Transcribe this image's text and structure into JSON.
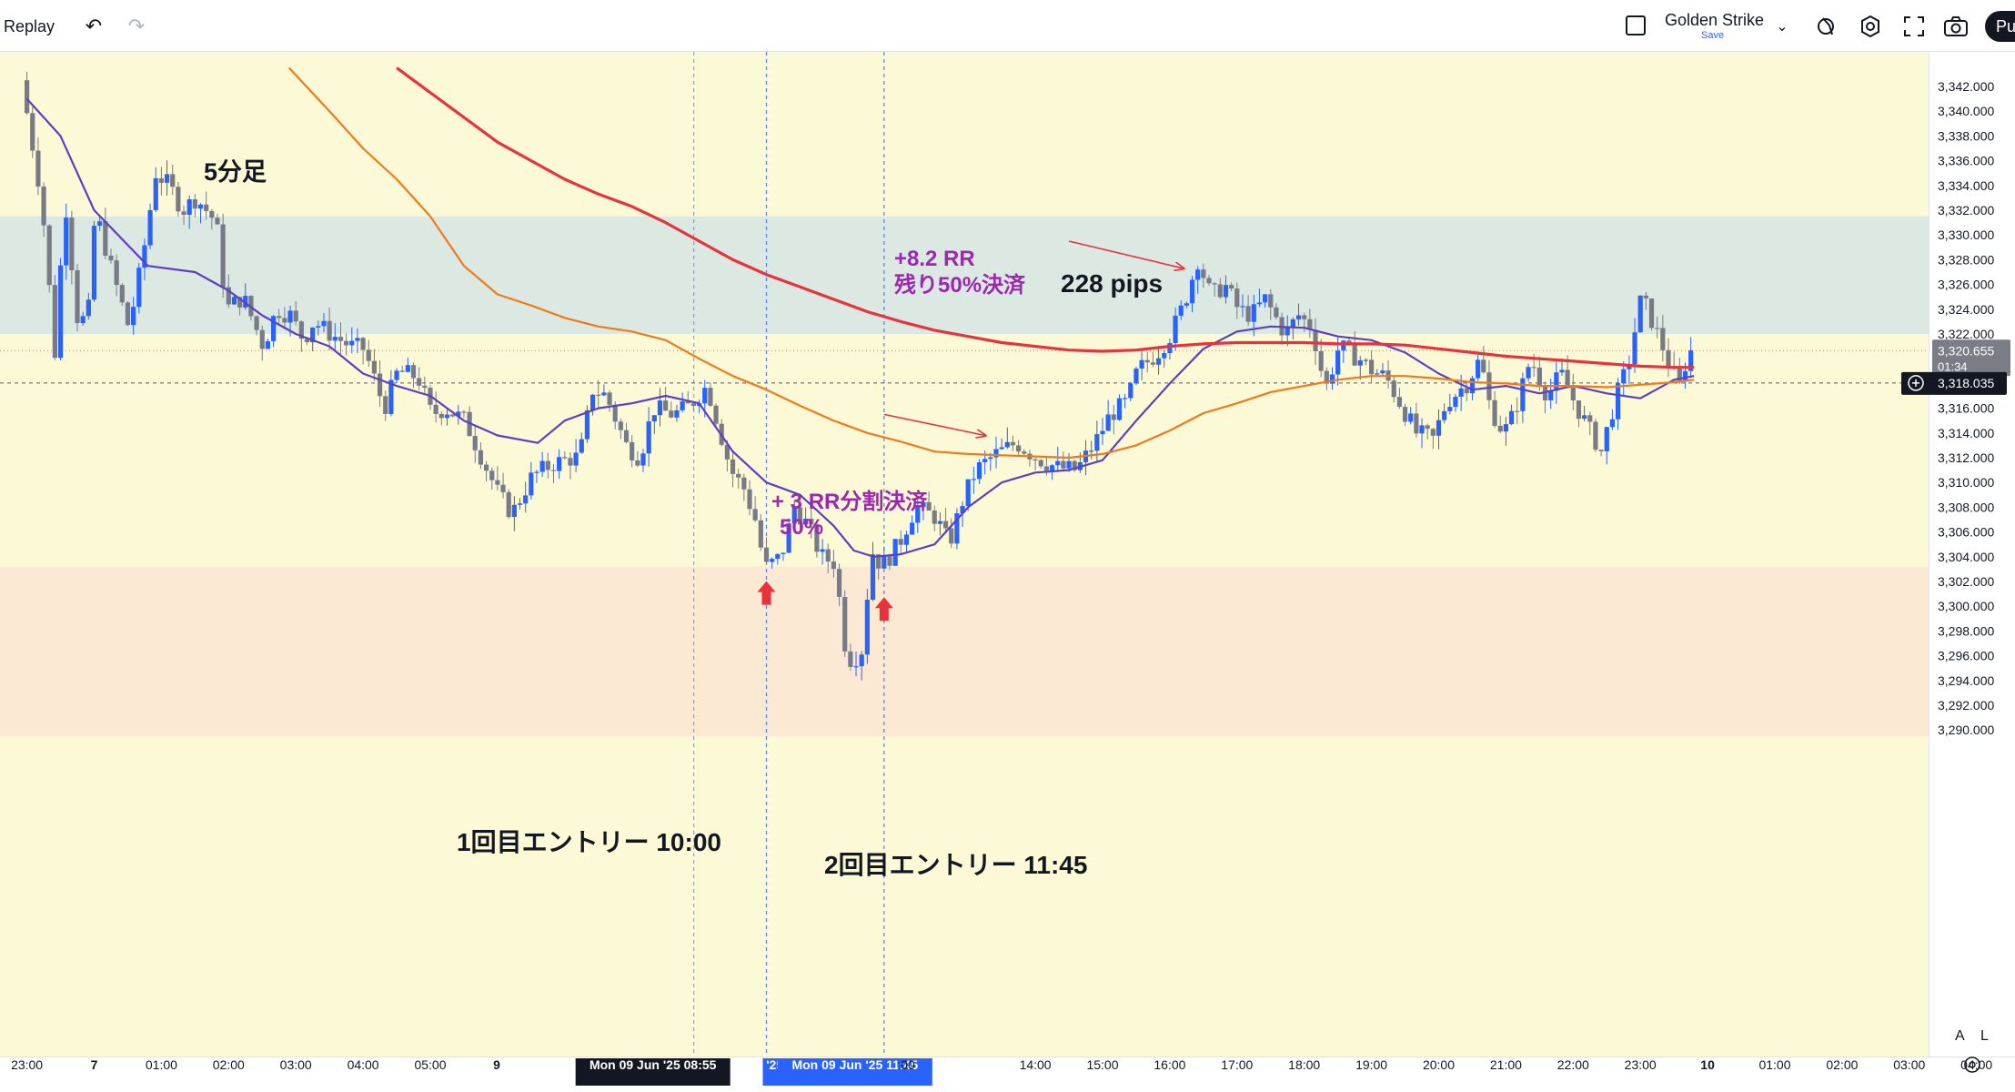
{
  "toolbar": {
    "replay_label": "Replay",
    "layout_name": "Golden Strike",
    "layout_status": "Save",
    "publish_label": "Pu",
    "icons": [
      "undo-icon",
      "redo-icon",
      "checkbox-icon",
      "chevron-down-icon",
      "alert-icon",
      "settings-icon",
      "fullscreen-icon",
      "camera-icon"
    ]
  },
  "chart_data": {
    "type": "candlestick",
    "symbol_timeframe_label": "5分足",
    "price_axis": {
      "min": 3288.0,
      "max": 3343.5,
      "ticks": [
        "3,342.000",
        "3,340.000",
        "3,338.000",
        "3,336.000",
        "3,334.000",
        "3,332.000",
        "3,330.000",
        "3,328.000",
        "3,326.000",
        "3,324.000",
        "3,322.000",
        "3,320.000",
        "3,318.000",
        "3,316.000",
        "3,314.000",
        "3,312.000",
        "3,310.000",
        "3,308.000",
        "3,306.000",
        "3,304.000",
        "3,302.000",
        "3,300.000",
        "3,298.000",
        "3,296.000",
        "3,294.000",
        "3,292.000",
        "3,290.000"
      ],
      "tick_values": [
        3342,
        3340,
        3338,
        3336,
        3334,
        3332,
        3330,
        3328,
        3326,
        3324,
        3322,
        3320,
        3318,
        3316,
        3314,
        3312,
        3310,
        3308,
        3306,
        3304,
        3302,
        3300,
        3298,
        3296,
        3294,
        3292,
        3290
      ],
      "last_price_label": "3,320.655",
      "last_price_value": 3320.655,
      "countdown": "01:34",
      "crosshair_price_label": "3,318.035",
      "crosshair_price_value": 3318.035,
      "scale_buttons": [
        "A",
        "L"
      ]
    },
    "time_axis": {
      "labels": [
        "23:00",
        "7",
        "01:00",
        "02:00",
        "03:00",
        "04:00",
        "05:00",
        "9",
        "Mon 09 Jun '25   08:55",
        "'25   1",
        "Mon 09 Jun '25   11:45",
        ":00",
        "14:00",
        "15:00",
        "16:00",
        "17:00",
        "18:00",
        "19:00",
        "20:00",
        "21:00",
        "22:00",
        "23:00",
        "10",
        "01:00",
        "02:00",
        "03:00",
        "04:00"
      ],
      "label_hours": [
        -1,
        0,
        1,
        2,
        3,
        4,
        5,
        null,
        8.92,
        10,
        11.75,
        null,
        14,
        15,
        16,
        17,
        18,
        19,
        20,
        21,
        22,
        23,
        24,
        25,
        26,
        27,
        28
      ],
      "bold_labels": [
        "7",
        "9",
        "10"
      ]
    },
    "zones": [
      {
        "name": "resistance-zone",
        "from": 3322.0,
        "to": 3331.5,
        "color": "#dce8e2"
      },
      {
        "name": "support-zone",
        "from": 3289.5,
        "to": 3303.2,
        "color": "#fce9d3"
      }
    ],
    "series": [
      {
        "name": "EMA fast",
        "color": "#5b3fc4",
        "points": [
          [
            -1.0,
            3341
          ],
          [
            -0.5,
            3338
          ],
          [
            0.0,
            3332
          ],
          [
            0.8,
            3327.5
          ],
          [
            1.5,
            3327
          ],
          [
            2.0,
            3325.5
          ],
          [
            2.5,
            3323.5
          ],
          [
            3.0,
            3322
          ],
          [
            3.5,
            3321
          ],
          [
            4.0,
            3318.8
          ],
          [
            4.5,
            3317.8
          ],
          [
            5.0,
            3317
          ],
          [
            5.5,
            3315
          ],
          [
            6.0,
            3313.8
          ],
          [
            6.6,
            3313.2
          ],
          [
            7.0,
            3315
          ],
          [
            7.5,
            3316
          ],
          [
            8.0,
            3316.4
          ],
          [
            8.5,
            3317
          ],
          [
            9.0,
            3316.4
          ],
          [
            9.5,
            3312.5
          ],
          [
            10.0,
            3310
          ],
          [
            10.5,
            3309
          ],
          [
            11.0,
            3306.5
          ],
          [
            11.3,
            3304.5
          ],
          [
            11.6,
            3304
          ],
          [
            12.0,
            3304.2
          ],
          [
            12.5,
            3305
          ],
          [
            13.0,
            3308
          ],
          [
            13.5,
            3310
          ],
          [
            14.0,
            3310.8
          ],
          [
            14.5,
            3311
          ],
          [
            15.0,
            3311.8
          ],
          [
            15.5,
            3315
          ],
          [
            16.0,
            3318
          ],
          [
            16.5,
            3320.8
          ],
          [
            17.0,
            3322.2
          ],
          [
            17.5,
            3322.6
          ],
          [
            18.0,
            3322.5
          ],
          [
            18.5,
            3321.8
          ],
          [
            19.0,
            3321.5
          ],
          [
            19.5,
            3320.5
          ],
          [
            20.0,
            3318.8
          ],
          [
            20.5,
            3317.5
          ],
          [
            21.0,
            3317.8
          ],
          [
            21.5,
            3317.2
          ],
          [
            22.0,
            3317.8
          ],
          [
            22.5,
            3317.2
          ],
          [
            23.0,
            3316.8
          ],
          [
            23.5,
            3318.3
          ],
          [
            23.8,
            3318.6
          ]
        ]
      },
      {
        "name": "EMA mid",
        "color": "#ef7a1a",
        "points": [
          [
            2.9,
            3343.5
          ],
          [
            3.5,
            3340
          ],
          [
            4.0,
            3337
          ],
          [
            4.5,
            3334.5
          ],
          [
            5.0,
            3331.5
          ],
          [
            5.5,
            3327.5
          ],
          [
            6.0,
            3325.2
          ],
          [
            6.5,
            3324.3
          ],
          [
            7.0,
            3323.3
          ],
          [
            7.5,
            3322.6
          ],
          [
            8.0,
            3322.2
          ],
          [
            8.5,
            3321.5
          ],
          [
            9.0,
            3320
          ],
          [
            9.5,
            3318.6
          ],
          [
            10.0,
            3317.5
          ],
          [
            10.5,
            3316.2
          ],
          [
            11.0,
            3315
          ],
          [
            11.5,
            3314
          ],
          [
            12.0,
            3313.3
          ],
          [
            12.5,
            3312.5
          ],
          [
            13.0,
            3312.3
          ],
          [
            13.5,
            3312.2
          ],
          [
            14.0,
            3312.1
          ],
          [
            14.5,
            3312
          ],
          [
            15.0,
            3312.3
          ],
          [
            15.5,
            3313
          ],
          [
            16.0,
            3314.2
          ],
          [
            16.5,
            3315.6
          ],
          [
            17.0,
            3316.4
          ],
          [
            17.5,
            3317.3
          ],
          [
            18.0,
            3317.8
          ],
          [
            18.5,
            3318.3
          ],
          [
            19.0,
            3318.6
          ],
          [
            19.5,
            3318.6
          ],
          [
            20.0,
            3318.4
          ],
          [
            20.5,
            3318.1
          ],
          [
            21.0,
            3318
          ],
          [
            21.5,
            3317.8
          ],
          [
            22.0,
            3317.8
          ],
          [
            22.5,
            3317.7
          ],
          [
            23.0,
            3317.9
          ],
          [
            23.5,
            3318.1
          ],
          [
            23.8,
            3318.3
          ]
        ]
      },
      {
        "name": "EMA slow",
        "color": "#e8323c",
        "points": [
          [
            4.5,
            3343.5
          ],
          [
            5.0,
            3341.5
          ],
          [
            5.5,
            3339.5
          ],
          [
            6.0,
            3337.5
          ],
          [
            6.5,
            3336
          ],
          [
            7.0,
            3334.5
          ],
          [
            7.5,
            3333.3
          ],
          [
            8.0,
            3332.3
          ],
          [
            8.5,
            3331
          ],
          [
            9.0,
            3329.5
          ],
          [
            9.5,
            3328
          ],
          [
            10.0,
            3326.8
          ],
          [
            10.5,
            3325.8
          ],
          [
            11.0,
            3324.8
          ],
          [
            11.5,
            3323.8
          ],
          [
            12.0,
            3323
          ],
          [
            12.5,
            3322.3
          ],
          [
            13.0,
            3321.8
          ],
          [
            13.5,
            3321.3
          ],
          [
            14.0,
            3321
          ],
          [
            14.5,
            3320.7
          ],
          [
            15.0,
            3320.6
          ],
          [
            15.5,
            3320.7
          ],
          [
            16.0,
            3321
          ],
          [
            16.5,
            3321.2
          ],
          [
            17.0,
            3321.3
          ],
          [
            17.5,
            3321.3
          ],
          [
            18.0,
            3321.3
          ],
          [
            18.5,
            3321.2
          ],
          [
            19.0,
            3321.2
          ],
          [
            19.5,
            3321.1
          ],
          [
            20.0,
            3320.8
          ],
          [
            20.5,
            3320.5
          ],
          [
            21.0,
            3320.2
          ],
          [
            21.5,
            3320
          ],
          [
            22.0,
            3319.8
          ],
          [
            22.5,
            3319.6
          ],
          [
            23.0,
            3319.4
          ],
          [
            23.5,
            3319.3
          ],
          [
            23.8,
            3319.3
          ]
        ]
      }
    ],
    "candle_path": [
      [
        -1.0,
        3342.5
      ],
      [
        -0.7,
        3333
      ],
      [
        -0.5,
        3320.5
      ],
      [
        -0.35,
        3333
      ],
      [
        -0.15,
        3322.5
      ],
      [
        0.0,
        3324
      ],
      [
        0.1,
        3332
      ],
      [
        0.35,
        3327
      ],
      [
        0.6,
        3322.5
      ],
      [
        0.8,
        3328
      ],
      [
        1.0,
        3335
      ],
      [
        1.2,
        3334
      ],
      [
        1.4,
        3332
      ],
      [
        1.6,
        3333
      ],
      [
        1.9,
        3331
      ],
      [
        2.05,
        3324
      ],
      [
        2.3,
        3325
      ],
      [
        2.6,
        3321
      ],
      [
        2.8,
        3324
      ],
      [
        3.0,
        3323.5
      ],
      [
        3.2,
        3321.5
      ],
      [
        3.35,
        3323
      ],
      [
        3.6,
        3322
      ],
      [
        3.9,
        3321
      ],
      [
        4.1,
        3320.8
      ],
      [
        4.4,
        3316
      ],
      [
        4.6,
        3319
      ],
      [
        4.9,
        3318.5
      ],
      [
        5.1,
        3315.5
      ],
      [
        5.3,
        3316
      ],
      [
        5.6,
        3315
      ],
      [
        5.85,
        3312
      ],
      [
        6.1,
        3309
      ],
      [
        6.3,
        3307.5
      ],
      [
        6.6,
        3310.5
      ],
      [
        6.9,
        3311.5
      ],
      [
        7.2,
        3312
      ],
      [
        7.3,
        3312
      ],
      [
        7.5,
        3317.5
      ],
      [
        7.7,
        3317
      ],
      [
        8.0,
        3313
      ],
      [
        8.2,
        3312
      ],
      [
        8.4,
        3316
      ],
      [
        8.7,
        3315.5
      ],
      [
        8.9,
        3316
      ],
      [
        9.2,
        3317.8
      ],
      [
        9.35,
        3315
      ],
      [
        9.55,
        3311
      ],
      [
        9.75,
        3309.5
      ],
      [
        9.95,
        3306.5
      ],
      [
        10.05,
        3303
      ],
      [
        10.3,
        3304
      ],
      [
        10.5,
        3308
      ],
      [
        10.7,
        3306.5
      ],
      [
        10.9,
        3304
      ],
      [
        11.1,
        3303.5
      ],
      [
        11.25,
        3297
      ],
      [
        11.35,
        3295.5
      ],
      [
        11.5,
        3296.5
      ],
      [
        11.65,
        3304.5
      ],
      [
        11.8,
        3303.2
      ],
      [
        12.05,
        3305
      ],
      [
        12.3,
        3308
      ],
      [
        12.6,
        3307.2
      ],
      [
        12.8,
        3305
      ],
      [
        13.0,
        3308.5
      ],
      [
        13.2,
        3311
      ],
      [
        13.5,
        3312.3
      ],
      [
        13.8,
        3313.2
      ],
      [
        14.1,
        3312
      ],
      [
        14.4,
        3311.2
      ],
      [
        14.7,
        3311
      ],
      [
        15.0,
        3313.5
      ],
      [
        15.2,
        3315.5
      ],
      [
        15.45,
        3316.5
      ],
      [
        15.6,
        3319
      ],
      [
        15.9,
        3320.5
      ],
      [
        16.1,
        3322
      ],
      [
        16.3,
        3324.5
      ],
      [
        16.5,
        3328
      ],
      [
        16.7,
        3325
      ],
      [
        16.9,
        3326
      ],
      [
        17.1,
        3324
      ],
      [
        17.3,
        3323.5
      ],
      [
        17.5,
        3324.8
      ],
      [
        17.8,
        3322
      ],
      [
        18.0,
        3323.5
      ],
      [
        18.2,
        3322.5
      ],
      [
        18.4,
        3317.5
      ],
      [
        18.6,
        3321
      ],
      [
        18.9,
        3320
      ],
      [
        19.1,
        3319
      ],
      [
        19.3,
        3318.5
      ],
      [
        19.55,
        3316
      ],
      [
        19.75,
        3314
      ],
      [
        20.0,
        3313.5
      ],
      [
        20.2,
        3316.5
      ],
      [
        20.5,
        3318
      ],
      [
        20.7,
        3320
      ],
      [
        20.85,
        3316
      ],
      [
        21.05,
        3314
      ],
      [
        21.2,
        3315.5
      ],
      [
        21.45,
        3320
      ],
      [
        21.7,
        3317
      ],
      [
        21.9,
        3318.8
      ],
      [
        22.1,
        3316.5
      ],
      [
        22.3,
        3314.5
      ],
      [
        22.5,
        3312.5
      ],
      [
        22.7,
        3316.5
      ],
      [
        22.9,
        3319.5
      ],
      [
        23.1,
        3325
      ],
      [
        23.3,
        3322.5
      ],
      [
        23.5,
        3319.8
      ],
      [
        23.65,
        3317.5
      ],
      [
        23.8,
        3320.6
      ]
    ],
    "last_candle_hour": 23.8,
    "vertical_lines": [
      {
        "name": "vline-0855",
        "hour": 8.92,
        "color": "#7b8fa8"
      },
      {
        "name": "vline-1000",
        "hour": 10.0,
        "color": "#2962ff"
      },
      {
        "name": "vline-1145",
        "hour": 11.75,
        "color": "#2962ff"
      }
    ],
    "entry_markers": [
      {
        "name": "entry-1",
        "hour": 10.0,
        "price": 3301.0,
        "label": "1回目エントリー 10:00"
      },
      {
        "name": "entry-2",
        "hour": 11.75,
        "price": 3299.7,
        "label": "2回目エントリー 11:45"
      }
    ],
    "annotations": [
      {
        "name": "partial-tp",
        "lines": [
          "+ 3 RR分割決済",
          "50%"
        ],
        "color": "#9c27b0",
        "arrow_from": [
          11.75,
          3315.5
        ],
        "arrow_to": [
          13.25,
          3313.8
        ]
      },
      {
        "name": "final-tp",
        "lines": [
          "+8.2 RR",
          "残り50%決済"
        ],
        "color": "#9c27b0",
        "arrow_from": [
          14.5,
          3329.5
        ],
        "arrow_to": [
          16.2,
          3327.3
        ]
      },
      {
        "name": "pips",
        "lines": [
          "228 pips"
        ],
        "color": "#131722"
      }
    ],
    "grid": false,
    "legend": "none",
    "colors": {
      "up": "#2962ff",
      "down": "#787b86",
      "bg_default": "#fcf9d6",
      "crosshair": "#555a66"
    }
  }
}
